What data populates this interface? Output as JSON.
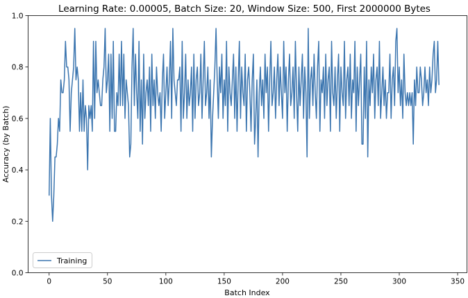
{
  "chart_data": {
    "type": "line",
    "title": "Learning Rate: 0.00005, Batch Size: 20, Window Size: 500, First 2000000 Bytes",
    "xlabel": "Batch Index",
    "ylabel": "Accuracy (by Batch)",
    "xlim": [
      -18,
      358
    ],
    "ylim": [
      0,
      1
    ],
    "xticks": [
      0,
      50,
      100,
      150,
      200,
      250,
      300,
      350
    ],
    "yticks": [
      "0.0",
      "0.2",
      "0.4",
      "0.6",
      "0.8",
      "1.0"
    ],
    "grid": false,
    "legend_position": "lower-left",
    "series": [
      {
        "name": "Training",
        "color": "#3b75af",
        "values": [
          0.3,
          0.6,
          0.3,
          0.2,
          0.3,
          0.45,
          0.45,
          0.5,
          0.6,
          0.55,
          0.75,
          0.7,
          0.7,
          0.75,
          0.9,
          0.8,
          0.8,
          0.75,
          0.55,
          0.7,
          0.75,
          0.8,
          0.95,
          0.75,
          0.8,
          0.75,
          0.55,
          0.7,
          0.55,
          0.75,
          0.55,
          0.65,
          0.6,
          0.4,
          0.65,
          0.6,
          0.65,
          0.55,
          0.9,
          0.6,
          0.9,
          0.7,
          0.75,
          0.7,
          0.65,
          0.65,
          0.75,
          0.8,
          0.95,
          0.7,
          0.75,
          0.85,
          0.55,
          0.85,
          0.6,
          0.9,
          0.55,
          0.55,
          0.7,
          0.65,
          0.85,
          0.65,
          0.9,
          0.65,
          0.85,
          0.6,
          0.75,
          0.7,
          0.65,
          0.45,
          0.5,
          0.8,
          0.95,
          0.65,
          0.85,
          0.7,
          0.6,
          0.9,
          0.55,
          0.75,
          0.5,
          0.85,
          0.6,
          0.7,
          0.75,
          0.65,
          0.8,
          0.55,
          0.85,
          0.65,
          0.75,
          0.6,
          0.8,
          0.7,
          0.65,
          0.7,
          0.55,
          0.75,
          0.85,
          0.6,
          0.7,
          0.8,
          0.65,
          0.75,
          0.9,
          0.6,
          0.95,
          0.75,
          0.7,
          0.65,
          0.75,
          0.75,
          0.8,
          0.55,
          0.9,
          0.6,
          0.7,
          0.85,
          0.6,
          0.75,
          0.65,
          0.7,
          0.8,
          0.55,
          0.85,
          0.6,
          0.75,
          0.8,
          0.65,
          0.7,
          0.85,
          0.6,
          0.75,
          0.9,
          0.65,
          0.7,
          0.8,
          0.6,
          0.75,
          0.45,
          0.6,
          0.7,
          0.8,
          0.95,
          0.75,
          0.6,
          0.8,
          0.7,
          0.85,
          0.6,
          0.75,
          0.65,
          0.9,
          0.55,
          0.8,
          0.7,
          0.65,
          0.75,
          0.85,
          0.6,
          0.8,
          0.55,
          0.75,
          0.9,
          0.6,
          0.8,
          0.7,
          0.65,
          0.85,
          0.55,
          0.75,
          0.8,
          0.7,
          0.55,
          0.75,
          0.85,
          0.5,
          0.6,
          0.75,
          0.45,
          0.7,
          0.8,
          0.65,
          0.75,
          0.6,
          0.85,
          0.7,
          0.8,
          0.55,
          0.75,
          0.9,
          0.65,
          0.7,
          0.8,
          0.6,
          0.75,
          0.85,
          0.65,
          0.8,
          0.7,
          0.6,
          0.9,
          0.7,
          0.8,
          0.55,
          0.75,
          0.85,
          0.65,
          0.7,
          0.8,
          0.6,
          0.9,
          0.7,
          0.55,
          0.8,
          0.65,
          0.75,
          0.85,
          0.6,
          0.8,
          0.7,
          0.45,
          0.95,
          0.6,
          0.75,
          0.8,
          0.65,
          0.85,
          0.7,
          0.6,
          0.8,
          0.9,
          0.55,
          0.75,
          0.7,
          0.8,
          0.6,
          0.85,
          0.65,
          0.75,
          0.8,
          0.55,
          0.9,
          0.7,
          0.65,
          0.8,
          0.6,
          0.75,
          0.85,
          0.55,
          0.8,
          0.7,
          0.65,
          0.9,
          0.6,
          0.75,
          0.8,
          0.65,
          0.85,
          0.6,
          0.75,
          0.7,
          0.9,
          0.55,
          0.8,
          0.65,
          0.75,
          0.85,
          0.5,
          0.5,
          0.8,
          0.6,
          0.9,
          0.45,
          0.75,
          0.65,
          0.8,
          0.7,
          0.85,
          0.6,
          0.75,
          0.8,
          0.65,
          0.9,
          0.6,
          0.7,
          0.8,
          0.65,
          0.75,
          0.6,
          0.7,
          0.7,
          0.85,
          0.6,
          0.75,
          0.8,
          0.65,
          0.9,
          0.95,
          0.7,
          0.8,
          0.65,
          0.75,
          0.6,
          0.85,
          0.7,
          0.65,
          0.7,
          0.65,
          0.7,
          0.65,
          0.7,
          0.5,
          0.75,
          0.65,
          0.8,
          0.7,
          0.7,
          0.8,
          0.75,
          0.65,
          0.7,
          0.8,
          0.7,
          0.75,
          0.65,
          0.8,
          0.7,
          0.75,
          0.85,
          0.9,
          0.7,
          0.75,
          0.9,
          0.73
        ]
      }
    ]
  }
}
